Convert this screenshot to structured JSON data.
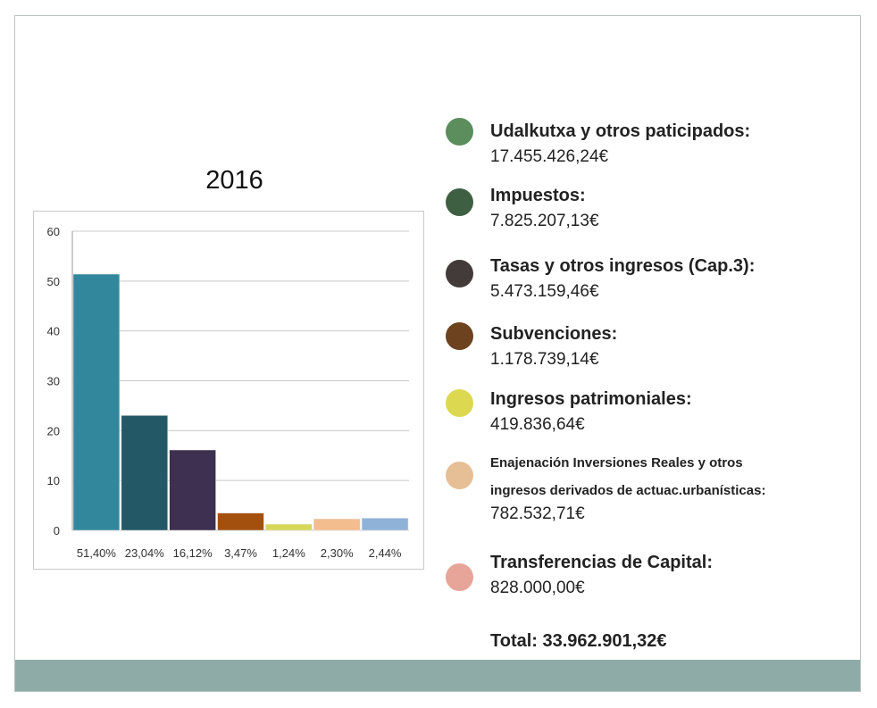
{
  "year": "2016",
  "chart_data": {
    "type": "bar",
    "categories": [
      "51,40%",
      "23,04%",
      "16,12%",
      "3,47%",
      "1,24%",
      "2,30%",
      "2,44%"
    ],
    "values": [
      51.4,
      23.04,
      16.12,
      3.47,
      1.24,
      2.3,
      2.44
    ],
    "colors": [
      "#33879d",
      "#235866",
      "#3e3050",
      "#a3500f",
      "#d7d85a",
      "#f3bd8e",
      "#8fb2d8"
    ],
    "ylim": [
      0,
      60
    ],
    "yticks": [
      "0",
      "10",
      "20",
      "30",
      "40",
      "50",
      "60"
    ],
    "grid": true
  },
  "legend": [
    {
      "name": "Udalkutxa y otros paticipados:",
      "value": "17.455.426,24€",
      "color": "#5b8d5d"
    },
    {
      "name": "Impuestos:",
      "value": "7.825.207,13€",
      "color": "#3f5f43"
    },
    {
      "name": "Tasas  y otros ingresos (Cap.3):",
      "value": "5.473.159,46€",
      "color": "#433b39"
    },
    {
      "name": "Subvenciones:",
      "value": "1.178.739,14€",
      "color": "#6d421e"
    },
    {
      "name": "Ingresos patrimoniales:",
      "value": "419.836,64€",
      "color": "#dcd850"
    },
    {
      "name_line1": "Enajenación Inversiones Reales y otros",
      "name_line2": "ingresos derivados de actuac.urbanísticas:",
      "value": "782.532,71€",
      "color": "#e6bf96"
    },
    {
      "name": "Transferencias de Capital:",
      "value": "828.000,00€",
      "color": "#e6a598"
    }
  ],
  "total": "Total: 33.962.901,32€"
}
